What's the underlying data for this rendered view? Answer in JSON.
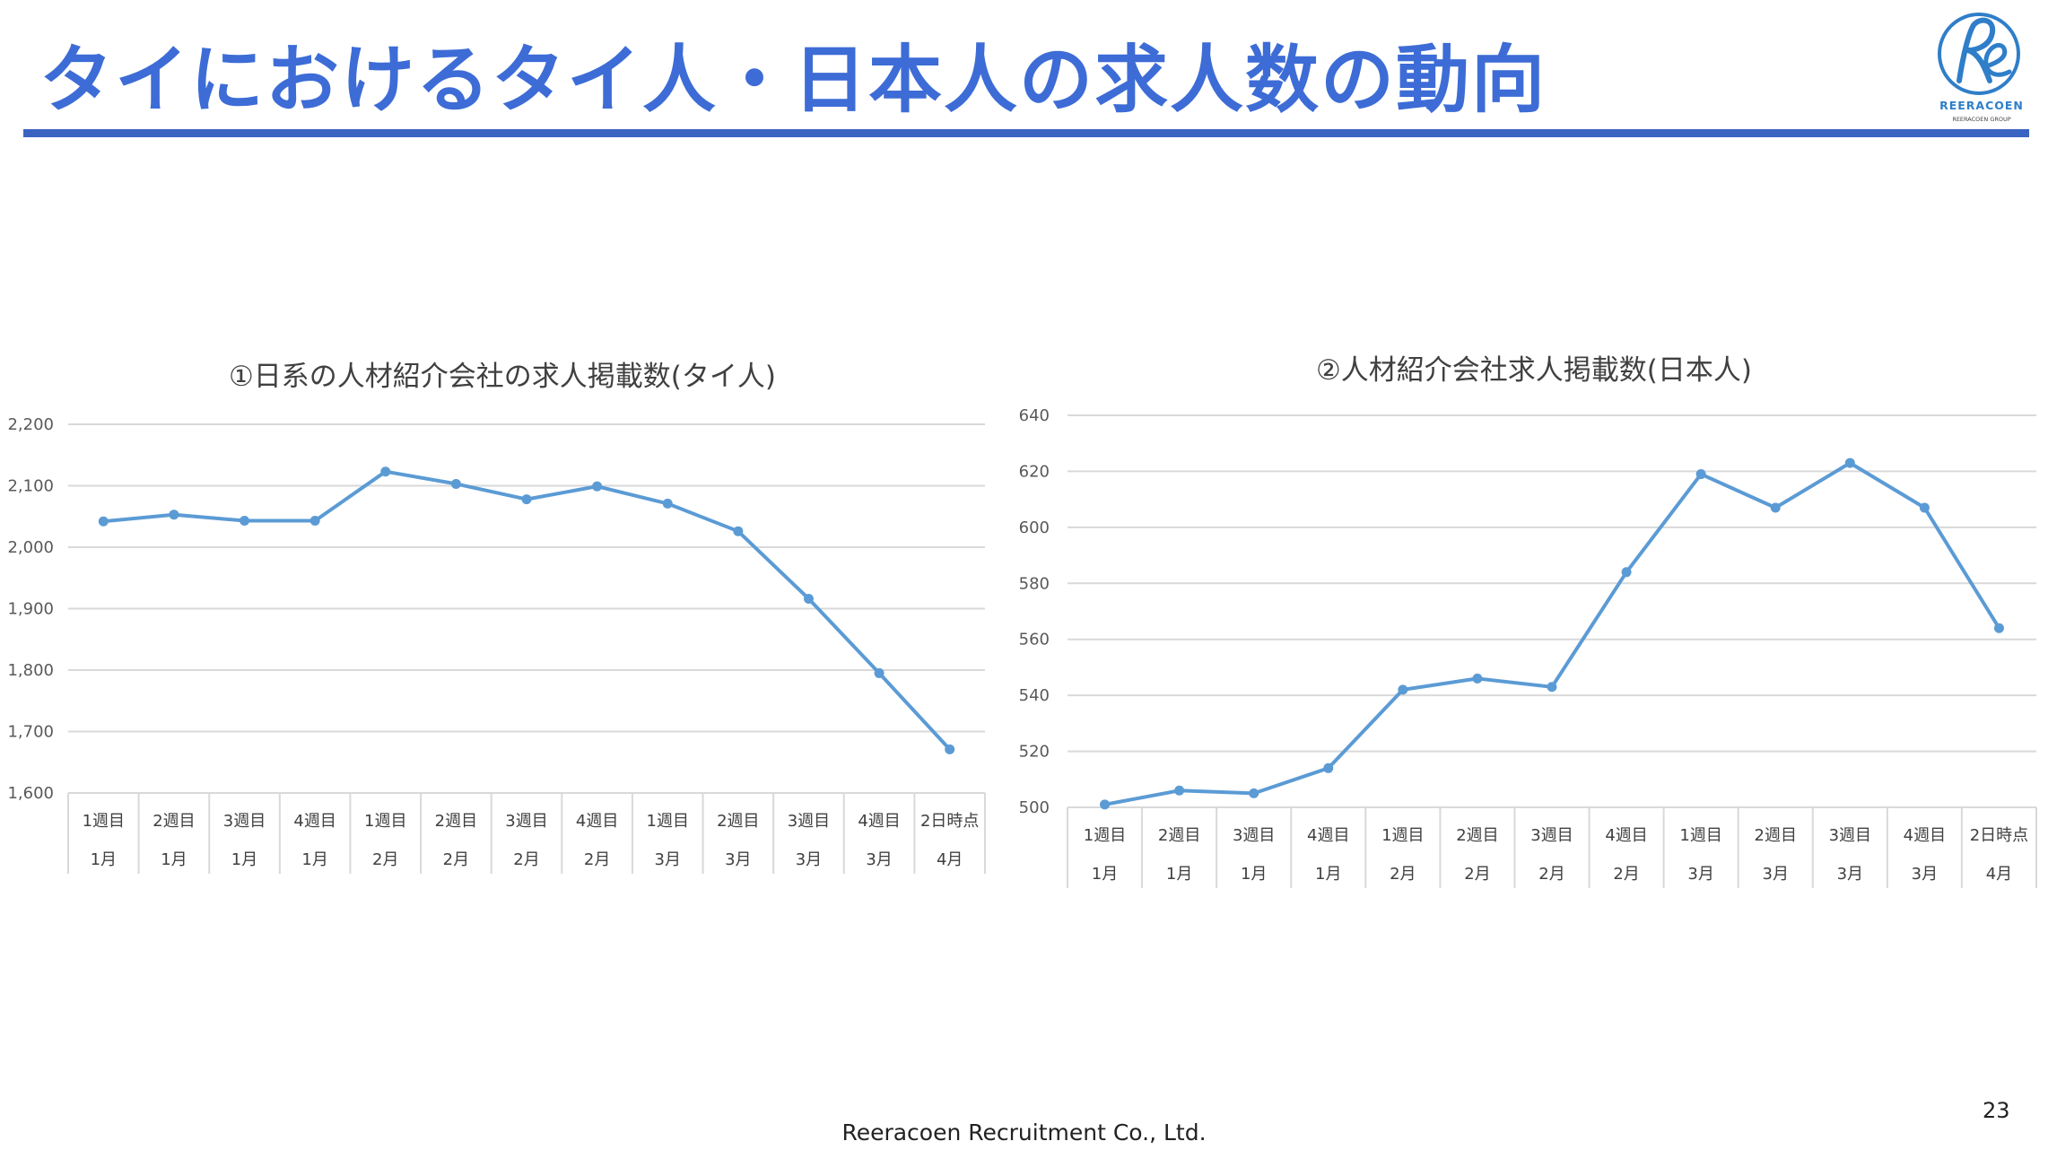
{
  "slide": {
    "title": "タイにおけるタイ人・日本人の求人数の動向",
    "footer": "Reeracoen Recruitment Co., Ltd.",
    "page_number": "23",
    "logo": {
      "name": "REERACOEN",
      "sub": "REERACOEN GROUP",
      "icon": "re-monogram-logo"
    },
    "colors": {
      "title": "#3d6cd6",
      "rule": "#3a64c2",
      "series": "#5b9bd5"
    }
  },
  "chart_data": [
    {
      "type": "line",
      "title": "①日系の人材紹介会社の求人掲載数(タイ人)",
      "categories": [
        {
          "week": "1週目",
          "month": "1月"
        },
        {
          "week": "2週目",
          "month": "1月"
        },
        {
          "week": "3週目",
          "month": "1月"
        },
        {
          "week": "4週目",
          "month": "1月"
        },
        {
          "week": "1週目",
          "month": "2月"
        },
        {
          "week": "2週目",
          "month": "2月"
        },
        {
          "week": "3週目",
          "month": "2月"
        },
        {
          "week": "4週目",
          "month": "2月"
        },
        {
          "week": "1週目",
          "month": "3月"
        },
        {
          "week": "2週目",
          "month": "3月"
        },
        {
          "week": "3週目",
          "month": "3月"
        },
        {
          "week": "4週目",
          "month": "3月"
        },
        {
          "week": "2日時点",
          "month": "4月"
        }
      ],
      "values": [
        2042,
        2053,
        2043,
        2043,
        2123,
        2103,
        2078,
        2099,
        2071,
        2026,
        1916,
        1795,
        1671
      ],
      "yticks": [
        "1,600",
        "1,700",
        "1,800",
        "1,900",
        "2,000",
        "2,100",
        "2,200"
      ],
      "ylim": [
        1600,
        2200
      ],
      "grid": true,
      "legend": "none"
    },
    {
      "type": "line",
      "title": "②人材紹介会社求人掲載数(日本人)",
      "categories": [
        {
          "week": "1週目",
          "month": "1月"
        },
        {
          "week": "2週目",
          "month": "1月"
        },
        {
          "week": "3週目",
          "month": "1月"
        },
        {
          "week": "4週目",
          "month": "1月"
        },
        {
          "week": "1週目",
          "month": "2月"
        },
        {
          "week": "2週目",
          "month": "2月"
        },
        {
          "week": "3週目",
          "month": "2月"
        },
        {
          "week": "4週目",
          "month": "2月"
        },
        {
          "week": "1週目",
          "month": "3月"
        },
        {
          "week": "2週目",
          "month": "3月"
        },
        {
          "week": "3週目",
          "month": "3月"
        },
        {
          "week": "4週目",
          "month": "3月"
        },
        {
          "week": "2日時点",
          "month": "4月"
        }
      ],
      "values": [
        501,
        506,
        505,
        514,
        542,
        546,
        543,
        584,
        619,
        607,
        623,
        607,
        564
      ],
      "yticks": [
        "500",
        "520",
        "540",
        "560",
        "580",
        "600",
        "620",
        "640"
      ],
      "ylim": [
        500,
        640
      ],
      "grid": true,
      "legend": "none"
    }
  ]
}
